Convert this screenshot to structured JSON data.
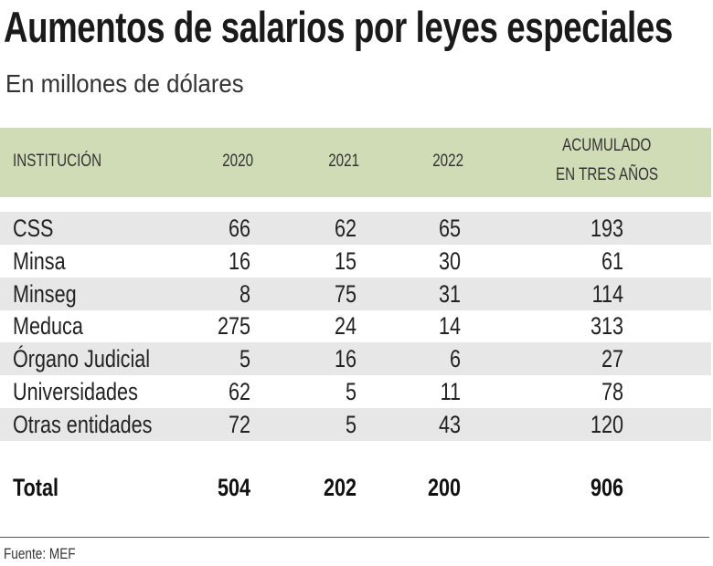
{
  "title": "Aumentos de salarios por leyes especiales",
  "subtitle": "En millones de dólares",
  "source": "Fuente: MEF",
  "colors": {
    "header_bg": "#cfdcb6",
    "stripe": "#e7e7e7"
  },
  "chart_data": {
    "type": "table",
    "title": "Aumentos de salarios por leyes especiales",
    "subtitle": "En millones de dólares",
    "columns": [
      "INSTITUCIÓN",
      "2020",
      "2021",
      "2022",
      "ACUMULADO",
      "EN TRES AÑOS"
    ],
    "header": {
      "institution": "INSTITUCIÓN",
      "y2020": "2020",
      "y2021": "2021",
      "y2022": "2022",
      "cum1": "ACUMULADO",
      "cum2": "EN TRES AÑOS"
    },
    "rows": [
      {
        "name": "CSS",
        "v2020": "66",
        "v2021": "62",
        "v2022": "65",
        "total": "193"
      },
      {
        "name": "Minsa",
        "v2020": "16",
        "v2021": "15",
        "v2022": "30",
        "total": "61"
      },
      {
        "name": "Minseg",
        "v2020": "8",
        "v2021": "75",
        "v2022": "31",
        "total": "114"
      },
      {
        "name": "Meduca",
        "v2020": "275",
        "v2021": "24",
        "v2022": "14",
        "total": "313"
      },
      {
        "name": "Órgano Judicial",
        "v2020": "5",
        "v2021": "16",
        "v2022": "6",
        "total": "27"
      },
      {
        "name": "Universidades",
        "v2020": "62",
        "v2021": "5",
        "v2022": "11",
        "total": "78"
      },
      {
        "name": "Otras entidades",
        "v2020": "72",
        "v2021": "5",
        "v2022": "43",
        "total": "120"
      }
    ],
    "total_row": {
      "name": "Total",
      "v2020": "504",
      "v2021": "202",
      "v2022": "200",
      "total": "906"
    }
  }
}
